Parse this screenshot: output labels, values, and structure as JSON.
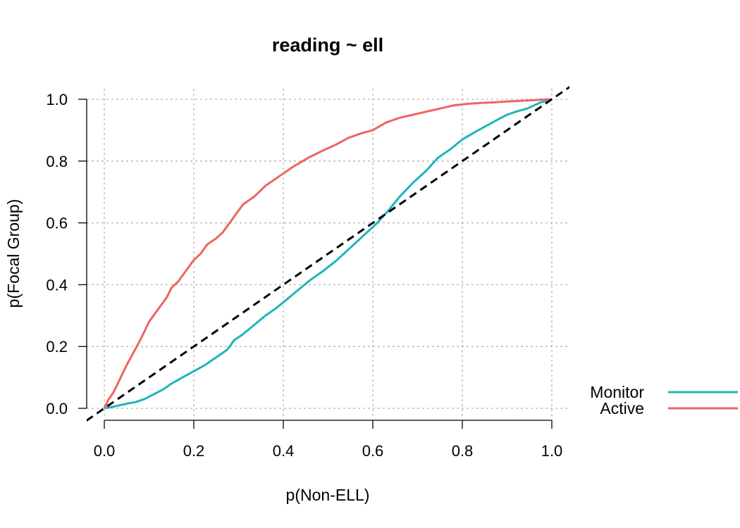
{
  "chart_data": {
    "type": "line",
    "title": "reading ~ ell",
    "xlabel": "p(Non-ELL)",
    "ylabel": "p(Focal Group)",
    "xlim": [
      0,
      1
    ],
    "ylim": [
      0,
      1
    ],
    "x_ticks": [
      "0.0",
      "0.2",
      "0.4",
      "0.6",
      "0.8",
      "1.0"
    ],
    "y_ticks": [
      "0.0",
      "0.2",
      "0.4",
      "0.6",
      "0.8",
      "1.0"
    ],
    "grid": true,
    "legend_position": "bottom-right",
    "reference_line": {
      "style": "dashed",
      "color": "#000000",
      "x": [
        -0.04,
        1.04
      ],
      "y": [
        -0.04,
        1.04
      ]
    },
    "series": [
      {
        "name": "Monitor",
        "color": "#1fb5b8",
        "x": [
          0.0,
          0.02,
          0.035,
          0.05,
          0.07,
          0.09,
          0.11,
          0.13,
          0.15,
          0.175,
          0.2,
          0.225,
          0.25,
          0.275,
          0.29,
          0.31,
          0.335,
          0.36,
          0.385,
          0.41,
          0.435,
          0.46,
          0.49,
          0.52,
          0.55,
          0.58,
          0.61,
          0.635,
          0.66,
          0.69,
          0.72,
          0.745,
          0.775,
          0.8,
          0.83,
          0.855,
          0.88,
          0.9,
          0.92,
          0.945,
          0.96,
          0.975,
          0.99,
          1.0
        ],
        "y": [
          0.0,
          0.005,
          0.01,
          0.015,
          0.02,
          0.03,
          0.045,
          0.06,
          0.08,
          0.1,
          0.12,
          0.14,
          0.165,
          0.19,
          0.22,
          0.24,
          0.27,
          0.3,
          0.325,
          0.355,
          0.385,
          0.415,
          0.445,
          0.48,
          0.52,
          0.56,
          0.6,
          0.64,
          0.685,
          0.73,
          0.77,
          0.81,
          0.84,
          0.87,
          0.895,
          0.915,
          0.935,
          0.95,
          0.96,
          0.97,
          0.98,
          0.99,
          0.995,
          1.0
        ]
      },
      {
        "name": "Active",
        "color": "#ef6461",
        "x": [
          0.0,
          0.01,
          0.02,
          0.03,
          0.04,
          0.05,
          0.065,
          0.08,
          0.09,
          0.1,
          0.11,
          0.125,
          0.14,
          0.15,
          0.165,
          0.18,
          0.19,
          0.2,
          0.215,
          0.23,
          0.25,
          0.265,
          0.28,
          0.295,
          0.31,
          0.335,
          0.36,
          0.39,
          0.42,
          0.455,
          0.49,
          0.52,
          0.545,
          0.575,
          0.6,
          0.63,
          0.66,
          0.69,
          0.72,
          0.75,
          0.78,
          0.81,
          0.84,
          0.87,
          0.9,
          0.93,
          0.96,
          0.98,
          1.0
        ],
        "y": [
          0.0,
          0.03,
          0.05,
          0.08,
          0.11,
          0.14,
          0.18,
          0.22,
          0.25,
          0.28,
          0.3,
          0.33,
          0.36,
          0.39,
          0.41,
          0.44,
          0.46,
          0.48,
          0.5,
          0.53,
          0.55,
          0.57,
          0.6,
          0.63,
          0.66,
          0.685,
          0.72,
          0.75,
          0.78,
          0.81,
          0.835,
          0.855,
          0.875,
          0.89,
          0.9,
          0.925,
          0.94,
          0.95,
          0.96,
          0.97,
          0.98,
          0.985,
          0.988,
          0.99,
          0.993,
          0.995,
          0.997,
          0.999,
          1.0
        ]
      }
    ]
  }
}
